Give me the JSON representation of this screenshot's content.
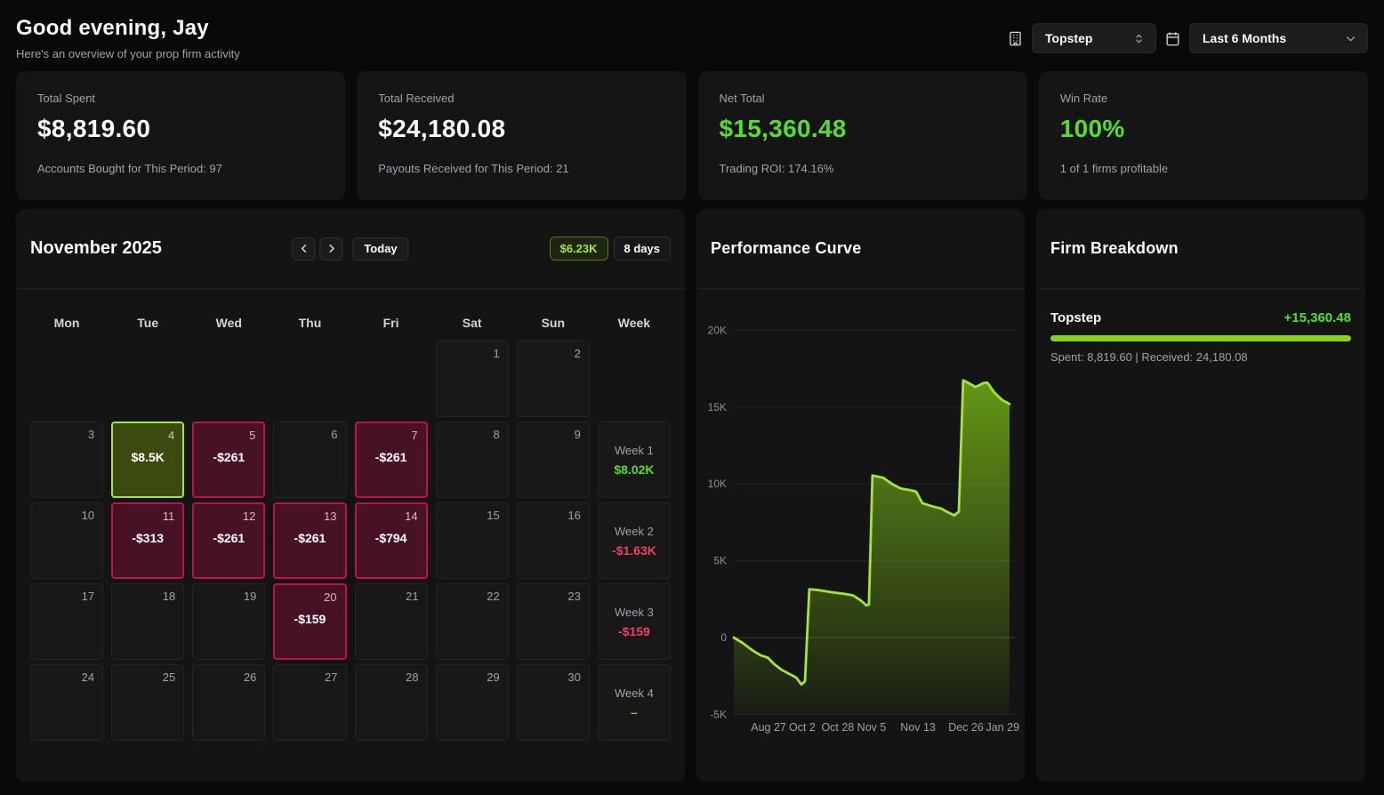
{
  "header": {
    "greeting": "Good evening, Jay",
    "subtitle": "Here's an overview of your prop firm activity",
    "firm_select_value": "Topstep",
    "range_select_value": "Last 6 Months"
  },
  "stats": [
    {
      "label": "Total Spent",
      "value": "$8,819.60",
      "caption": "Accounts Bought for This Period: 97",
      "color": "white"
    },
    {
      "label": "Total Received",
      "value": "$24,180.08",
      "caption": "Payouts Received for This Period: 21",
      "color": "white"
    },
    {
      "label": "Net Total",
      "value": "$15,360.48",
      "caption": "Trading ROI: 174.16%",
      "color": "green"
    },
    {
      "label": "Win Rate",
      "value": "100%",
      "caption": "1 of 1 firms profitable",
      "color": "green"
    }
  ],
  "calendar": {
    "title": "November 2025",
    "today_label": "Today",
    "total_badge": "$6.23K",
    "days_badge": "8 days",
    "day_headers": [
      "Mon",
      "Tue",
      "Wed",
      "Thu",
      "Fri",
      "Sat",
      "Sun",
      "Week"
    ],
    "grid": [
      [
        {
          "t": "b"
        },
        {
          "t": "b"
        },
        {
          "t": "b"
        },
        {
          "t": "b"
        },
        {
          "t": "b"
        },
        {
          "t": "d",
          "n": "1"
        },
        {
          "t": "d",
          "n": "2"
        },
        {
          "t": "b"
        }
      ],
      [
        {
          "t": "d",
          "n": "3"
        },
        {
          "t": "d",
          "n": "4",
          "v": "$8.5K",
          "s": "profit"
        },
        {
          "t": "d",
          "n": "5",
          "v": "-$261",
          "s": "loss"
        },
        {
          "t": "d",
          "n": "6"
        },
        {
          "t": "d",
          "n": "7",
          "v": "-$261",
          "s": "loss"
        },
        {
          "t": "d",
          "n": "8"
        },
        {
          "t": "d",
          "n": "9"
        },
        {
          "t": "w",
          "l": "Week 1",
          "v": "$8.02K",
          "s": "profit"
        }
      ],
      [
        {
          "t": "d",
          "n": "10"
        },
        {
          "t": "d",
          "n": "11",
          "v": "-$313",
          "s": "loss"
        },
        {
          "t": "d",
          "n": "12",
          "v": "-$261",
          "s": "loss"
        },
        {
          "t": "d",
          "n": "13",
          "v": "-$261",
          "s": "loss"
        },
        {
          "t": "d",
          "n": "14",
          "v": "-$794",
          "s": "loss"
        },
        {
          "t": "d",
          "n": "15"
        },
        {
          "t": "d",
          "n": "16"
        },
        {
          "t": "w",
          "l": "Week 2",
          "v": "-$1.63K",
          "s": "loss"
        }
      ],
      [
        {
          "t": "d",
          "n": "17"
        },
        {
          "t": "d",
          "n": "18"
        },
        {
          "t": "d",
          "n": "19"
        },
        {
          "t": "d",
          "n": "20",
          "v": "-$159",
          "s": "loss"
        },
        {
          "t": "d",
          "n": "21"
        },
        {
          "t": "d",
          "n": "22"
        },
        {
          "t": "d",
          "n": "23"
        },
        {
          "t": "w",
          "l": "Week 3",
          "v": "-$159",
          "s": "loss"
        }
      ],
      [
        {
          "t": "d",
          "n": "24"
        },
        {
          "t": "d",
          "n": "25"
        },
        {
          "t": "d",
          "n": "26"
        },
        {
          "t": "d",
          "n": "27"
        },
        {
          "t": "d",
          "n": "28"
        },
        {
          "t": "d",
          "n": "29"
        },
        {
          "t": "d",
          "n": "30"
        },
        {
          "t": "w",
          "l": "Week 4",
          "v": "–",
          "s": "profit"
        }
      ]
    ]
  },
  "chart_data": {
    "type": "area",
    "title": "Performance Curve",
    "grid": true,
    "legend": false,
    "line_color": "#a3e635",
    "fill_color": "#84cc16",
    "ylim": [
      -5000,
      20000
    ],
    "yticks": [
      {
        "label": "20K",
        "value": 20000
      },
      {
        "label": "15K",
        "value": 15000
      },
      {
        "label": "10K",
        "value": 10000
      },
      {
        "label": "5K",
        "value": 5000
      },
      {
        "label": "0",
        "value": 0
      },
      {
        "label": "-5K",
        "value": -5000
      }
    ],
    "xticks": [
      {
        "label": "Aug 27",
        "pos": 0.126
      },
      {
        "label": "Oct 2",
        "pos": 0.248
      },
      {
        "label": "Oct 28",
        "pos": 0.377
      },
      {
        "label": "Nov 5",
        "pos": 0.5
      },
      {
        "label": "Nov 13",
        "pos": 0.668
      },
      {
        "label": "Dec 26",
        "pos": 0.842
      },
      {
        "label": "Jan 29",
        "pos": 0.975
      }
    ],
    "points": [
      [
        0.0,
        0
      ],
      [
        0.032,
        -350
      ],
      [
        0.065,
        -800
      ],
      [
        0.097,
        -1150
      ],
      [
        0.123,
        -1300
      ],
      [
        0.148,
        -1750
      ],
      [
        0.174,
        -2100
      ],
      [
        0.2,
        -2350
      ],
      [
        0.226,
        -2600
      ],
      [
        0.245,
        -3050
      ],
      [
        0.258,
        -2850
      ],
      [
        0.274,
        3150
      ],
      [
        0.303,
        3100
      ],
      [
        0.355,
        2950
      ],
      [
        0.4,
        2850
      ],
      [
        0.432,
        2750
      ],
      [
        0.458,
        2450
      ],
      [
        0.481,
        2100
      ],
      [
        0.49,
        2150
      ],
      [
        0.503,
        10550
      ],
      [
        0.542,
        10400
      ],
      [
        0.574,
        10000
      ],
      [
        0.606,
        9700
      ],
      [
        0.639,
        9600
      ],
      [
        0.661,
        9500
      ],
      [
        0.684,
        8750
      ],
      [
        0.719,
        8550
      ],
      [
        0.752,
        8400
      ],
      [
        0.777,
        8150
      ],
      [
        0.8,
        7950
      ],
      [
        0.816,
        8200
      ],
      [
        0.832,
        16750
      ],
      [
        0.858,
        16500
      ],
      [
        0.877,
        16300
      ],
      [
        0.903,
        16550
      ],
      [
        0.919,
        16600
      ],
      [
        0.945,
        15950
      ],
      [
        0.974,
        15450
      ],
      [
        1.0,
        15200
      ]
    ]
  },
  "firm_breakdown": {
    "title": "Firm Breakdown",
    "firms": [
      {
        "name": "Topstep",
        "net": "+15,360.48",
        "bar_pct": 100,
        "detail": "Spent: 8,819.60 | Received: 24,180.08"
      }
    ]
  },
  "colors": {
    "green_text": "#55de2b",
    "lime": "#a3e635",
    "red_text": "#f43f5e"
  }
}
